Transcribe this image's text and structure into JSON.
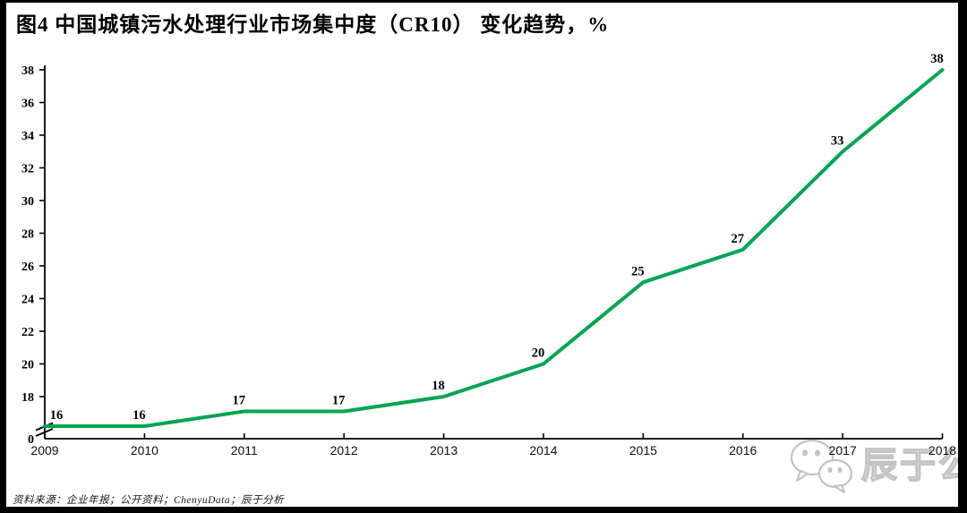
{
  "title": "图4 中国城镇污水处理行业市场集中度（CR10） 变化趋势，%",
  "footer": {
    "source": "资料来源：企业年报；公开资料；ChenyuData；辰于分析"
  },
  "watermark": {
    "icon": "wechat-logo-icon",
    "text": "辰于公司"
  },
  "colors": {
    "line": "#00a650",
    "axis": "#000000",
    "text": "#000000",
    "watermark": "#c3c3c3"
  },
  "chart_data": {
    "type": "line",
    "title": "图4 中国城镇污水处理行业市场集中度（CR10） 变化趋势，%",
    "categories": [
      "2009",
      "2010",
      "2011",
      "2012",
      "2013",
      "2014",
      "2015",
      "2016",
      "2017",
      "2018"
    ],
    "series": [
      {
        "name": "CR10",
        "values": [
          16,
          16,
          17,
          17,
          18,
          20,
          25,
          27,
          33,
          38
        ]
      }
    ],
    "data_labels": [
      "16",
      "16",
      "17",
      "17",
      "18",
      "20",
      "25",
      "27",
      "33",
      "38"
    ],
    "xlabel": "",
    "ylabel": "",
    "unit": "%",
    "y_ticks": [
      0,
      18,
      20,
      22,
      24,
      26,
      28,
      30,
      32,
      34,
      36,
      38
    ],
    "ylim": [
      0,
      38
    ],
    "axis_break": true,
    "grid": false,
    "legend": false
  }
}
